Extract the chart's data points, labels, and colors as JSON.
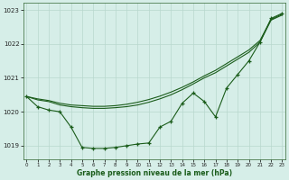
{
  "xlabel": "Graphe pression niveau de la mer (hPa)",
  "ylim": [
    1018.6,
    1023.2
  ],
  "xlim": [
    -0.3,
    23.3
  ],
  "yticks": [
    1019,
    1020,
    1021,
    1022,
    1023
  ],
  "xticks": [
    0,
    1,
    2,
    3,
    4,
    5,
    6,
    7,
    8,
    9,
    10,
    11,
    12,
    13,
    14,
    15,
    16,
    17,
    18,
    19,
    20,
    21,
    22,
    23
  ],
  "bg_color": "#d6eee8",
  "line_color": "#1a5c1a",
  "grid_color": "#b8d8ce",
  "series1_x": [
    0,
    1,
    2,
    3,
    4,
    5,
    6,
    7,
    8,
    9,
    10,
    11,
    12,
    13,
    14,
    15,
    16,
    17,
    18,
    19,
    20,
    21,
    22,
    23
  ],
  "series1_y": [
    1020.45,
    1020.15,
    1020.05,
    1020.0,
    1019.55,
    1018.95,
    1018.92,
    1018.92,
    1018.95,
    1019.0,
    1019.05,
    1019.08,
    1019.55,
    1019.72,
    1020.25,
    1020.55,
    1020.3,
    1019.85,
    1020.7,
    1021.1,
    1021.5,
    1022.05,
    1022.75,
    1022.9
  ],
  "series2_x": [
    0,
    1,
    2,
    3,
    4,
    5,
    6,
    7,
    8,
    9,
    10,
    11,
    12,
    13,
    14,
    15,
    16,
    17,
    18,
    19,
    20,
    21,
    22,
    23
  ],
  "series2_y": [
    1020.45,
    1020.35,
    1020.3,
    1020.2,
    1020.15,
    1020.12,
    1020.1,
    1020.1,
    1020.12,
    1020.15,
    1020.2,
    1020.28,
    1020.38,
    1020.5,
    1020.65,
    1020.82,
    1021.0,
    1021.15,
    1021.35,
    1021.55,
    1021.75,
    1022.05,
    1022.7,
    1022.85
  ],
  "series3_x": [
    0,
    1,
    2,
    3,
    4,
    5,
    6,
    7,
    8,
    9,
    10,
    11,
    12,
    13,
    14,
    15,
    16,
    17,
    18,
    19,
    20,
    21,
    22,
    23
  ],
  "series3_y": [
    1020.45,
    1020.38,
    1020.33,
    1020.25,
    1020.2,
    1020.18,
    1020.16,
    1020.16,
    1020.18,
    1020.22,
    1020.28,
    1020.36,
    1020.46,
    1020.58,
    1020.72,
    1020.88,
    1021.06,
    1021.22,
    1021.42,
    1021.62,
    1021.82,
    1022.1,
    1022.72,
    1022.88
  ]
}
